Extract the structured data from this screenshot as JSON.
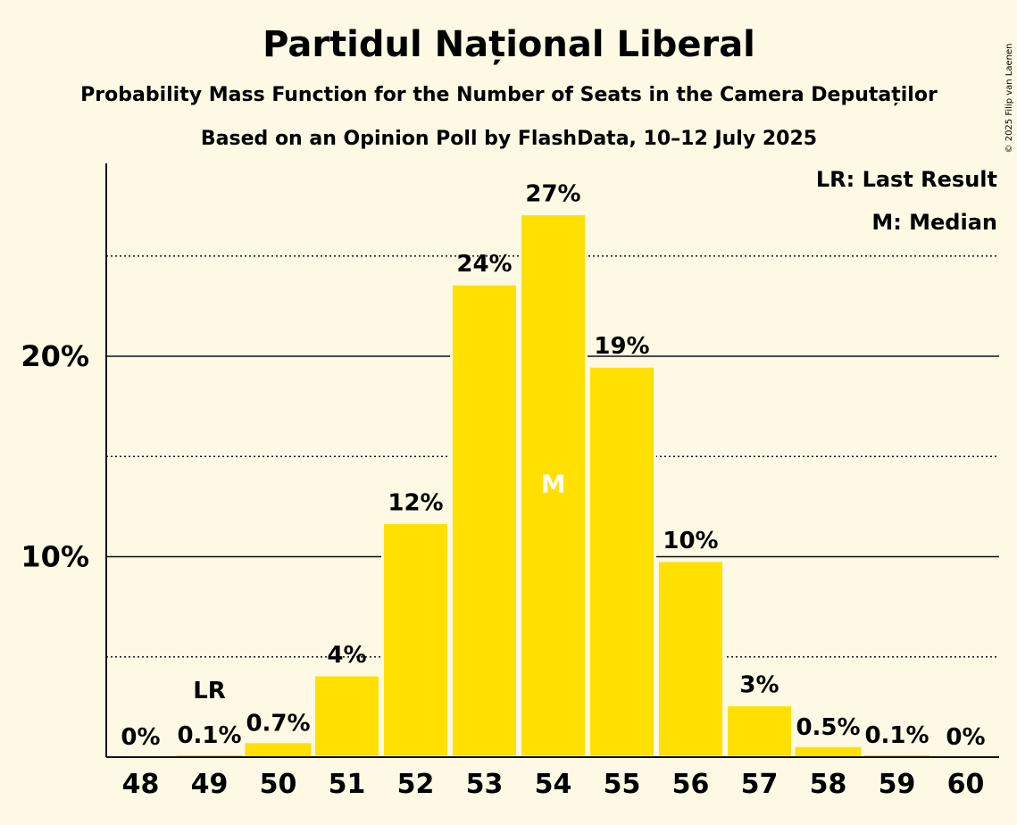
{
  "chart_data": {
    "type": "bar",
    "title": "Partidul Național Liberal",
    "subtitle": "Probability Mass Function for the Number of Seats in the Camera Deputaților",
    "source": "Based on an Opinion Poll by FlashData, 10–12 July 2025",
    "copyright": "© 2025 Filip van Laenen",
    "categories": [
      "48",
      "49",
      "50",
      "51",
      "52",
      "53",
      "54",
      "55",
      "56",
      "57",
      "58",
      "59",
      "60"
    ],
    "values": [
      0,
      0.1,
      0.7,
      4.1,
      11.7,
      23.6,
      27.1,
      19.5,
      9.8,
      2.6,
      0.5,
      0.1,
      0
    ],
    "data_labels": [
      "0%",
      "0.1%",
      "0.7%",
      "4%",
      "12%",
      "24%",
      "27%",
      "19%",
      "10%",
      "3%",
      "0.5%",
      "0.1%",
      "0%"
    ],
    "ylim": [
      0,
      29.5
    ],
    "yticks": [
      {
        "value": 10,
        "label": "10%",
        "style": "solid"
      },
      {
        "value": 20,
        "label": "20%",
        "style": "solid"
      }
    ],
    "dotted_gridlines": [
      5,
      15,
      25
    ],
    "last_result": {
      "category": "49",
      "label": "LR"
    },
    "median": {
      "category": "54",
      "label": "M"
    },
    "legend": [
      "LR: Last Result",
      "M: Median"
    ],
    "colors": {
      "bar": "#ffe000",
      "background": "#fef9e4",
      "text": "#111111",
      "median_text": "#ffffff"
    }
  }
}
